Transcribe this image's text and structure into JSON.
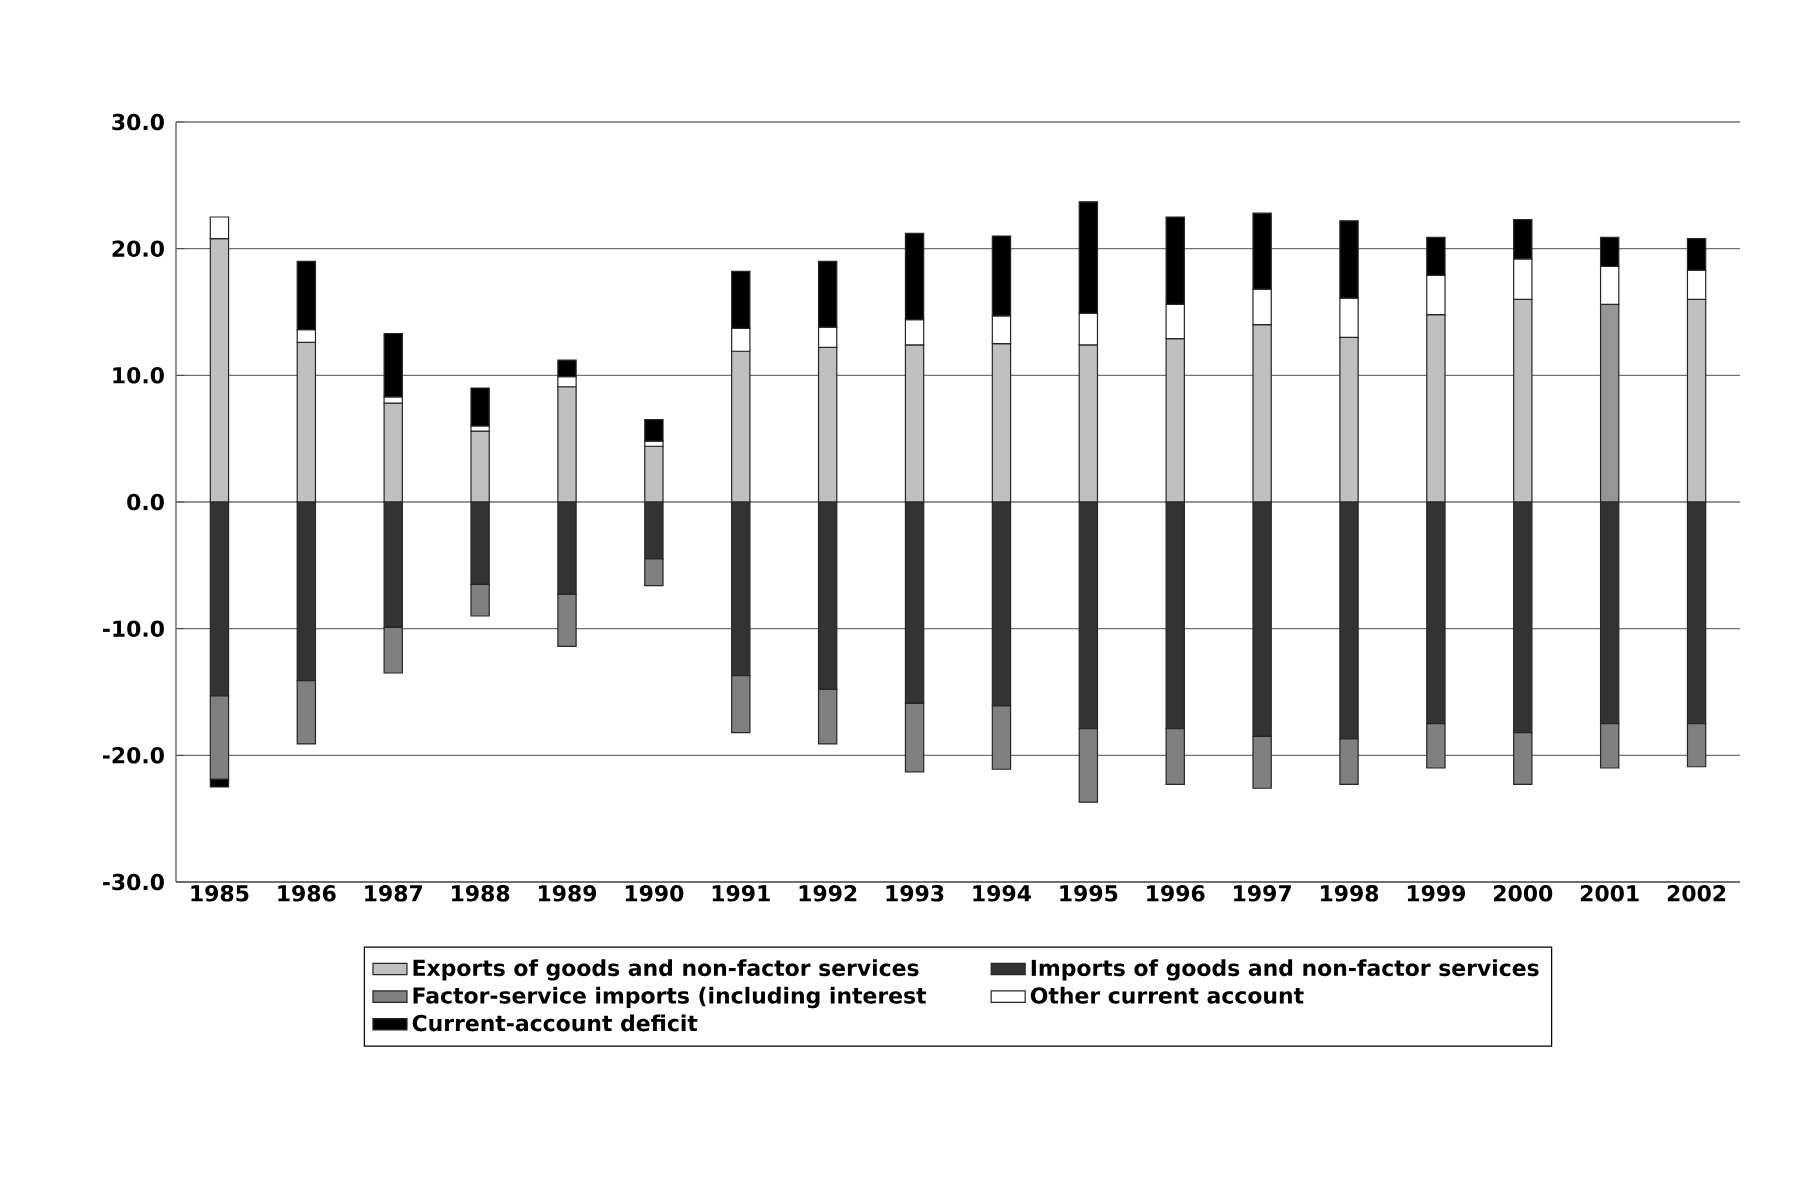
{
  "chart_data": {
    "type": "bar",
    "stacked": true,
    "grid": "y",
    "legend": "bottom",
    "categories": [
      "1985",
      "1986",
      "1987",
      "1988",
      "1989",
      "1990",
      "1991",
      "1992",
      "1993",
      "1994",
      "1995",
      "1996",
      "1997",
      "1998",
      "1999",
      "2000",
      "2001",
      "2002"
    ],
    "ylim": [
      -30,
      30
    ],
    "yticks": [
      {
        "value": -30,
        "label": "-30.0"
      },
      {
        "value": -20,
        "label": "-20.0"
      },
      {
        "value": -10,
        "label": "-10.0"
      },
      {
        "value": 0,
        "label": "0.0"
      },
      {
        "value": 10,
        "label": "10.0"
      },
      {
        "value": 20,
        "label": "20.0"
      },
      {
        "value": 30,
        "label": "30.0"
      }
    ],
    "series": [
      {
        "name": "Exports of goods and non-factor services",
        "color": "#c0c0c0",
        "colors": [
          "#c0c0c0",
          "#c0c0c0",
          "#c0c0c0",
          "#c0c0c0",
          "#c0c0c0",
          "#c0c0c0",
          "#c0c0c0",
          "#c0c0c0",
          "#c0c0c0",
          "#c0c0c0",
          "#c0c0c0",
          "#c0c0c0",
          "#c0c0c0",
          "#c0c0c0",
          "#c0c0c0",
          "#c0c0c0",
          "#969696",
          "#c0c0c0"
        ],
        "values": [
          20.8,
          12.6,
          7.8,
          5.6,
          9.1,
          4.4,
          11.9,
          12.2,
          12.4,
          12.5,
          12.4,
          12.9,
          14.0,
          13.0,
          14.8,
          16.0,
          15.6,
          16.0
        ]
      },
      {
        "name": "Imports of goods and non-factor services",
        "color": "#333333",
        "values": [
          -15.3,
          -14.1,
          -9.9,
          -6.5,
          -7.3,
          -4.5,
          -13.7,
          -14.8,
          -15.9,
          -16.1,
          -17.9,
          -17.9,
          -18.5,
          -18.7,
          -17.5,
          -18.2,
          -17.5,
          -17.5
        ]
      },
      {
        "name": "Factor-service imports (including interest",
        "color": "#808080",
        "values": [
          -6.6,
          -5.0,
          -3.6,
          -2.5,
          -4.1,
          -2.1,
          -4.5,
          -4.3,
          -5.4,
          -5.0,
          -5.8,
          -4.4,
          -4.1,
          -3.6,
          -3.5,
          -4.1,
          -3.5,
          -3.4
        ]
      },
      {
        "name": "Other current account",
        "color": "#ffffff",
        "values": [
          1.7,
          1.0,
          0.5,
          0.4,
          0.8,
          0.4,
          1.8,
          1.6,
          2.0,
          2.2,
          2.5,
          2.7,
          2.8,
          3.1,
          3.1,
          3.2,
          3.0,
          2.3
        ]
      },
      {
        "name": "Current-account deficit",
        "color": "#000000",
        "values": [
          -0.6,
          5.4,
          5.0,
          3.0,
          1.3,
          1.7,
          4.5,
          5.2,
          6.8,
          6.3,
          8.8,
          6.9,
          6.0,
          6.1,
          3.0,
          3.1,
          2.3,
          2.5
        ]
      }
    ]
  }
}
